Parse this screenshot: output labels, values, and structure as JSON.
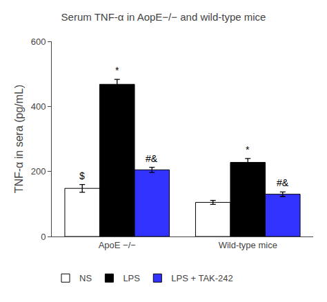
{
  "chart_data": {
    "type": "bar",
    "title": "Serum TNF-α in AopE−/− and wild-type mice",
    "ylabel": "TNF-α in sera (pg/mL)",
    "categories": [
      "ApoE −/−",
      "Wild-type mice"
    ],
    "series": [
      {
        "name": "NS",
        "color": "white",
        "values": [
          148,
          105
        ],
        "errors": [
          12,
          6
        ]
      },
      {
        "name": "LPS",
        "color": "black",
        "values": [
          468,
          228
        ],
        "errors": [
          15,
          12
        ]
      },
      {
        "name": "LPS + TAK-242",
        "color": "#3333FF",
        "values": [
          205,
          130
        ],
        "errors": [
          8,
          7
        ]
      }
    ],
    "annotations": [
      {
        "text": "$",
        "category": "ApoE −/−",
        "series": "NS"
      },
      {
        "text": "*",
        "category": "ApoE −/−",
        "series": "LPS"
      },
      {
        "text": "#&",
        "category": "ApoE −/−",
        "series": "LPS + TAK-242"
      },
      {
        "text": "*",
        "category": "Wild-type mice",
        "series": "LPS"
      },
      {
        "text": "#&",
        "category": "Wild-type mice",
        "series": "LPS + TAK-242"
      }
    ],
    "ylim": [
      0,
      600
    ],
    "yticks": [
      0,
      200,
      400,
      600
    ],
    "grid": false,
    "legend": "bottom"
  }
}
